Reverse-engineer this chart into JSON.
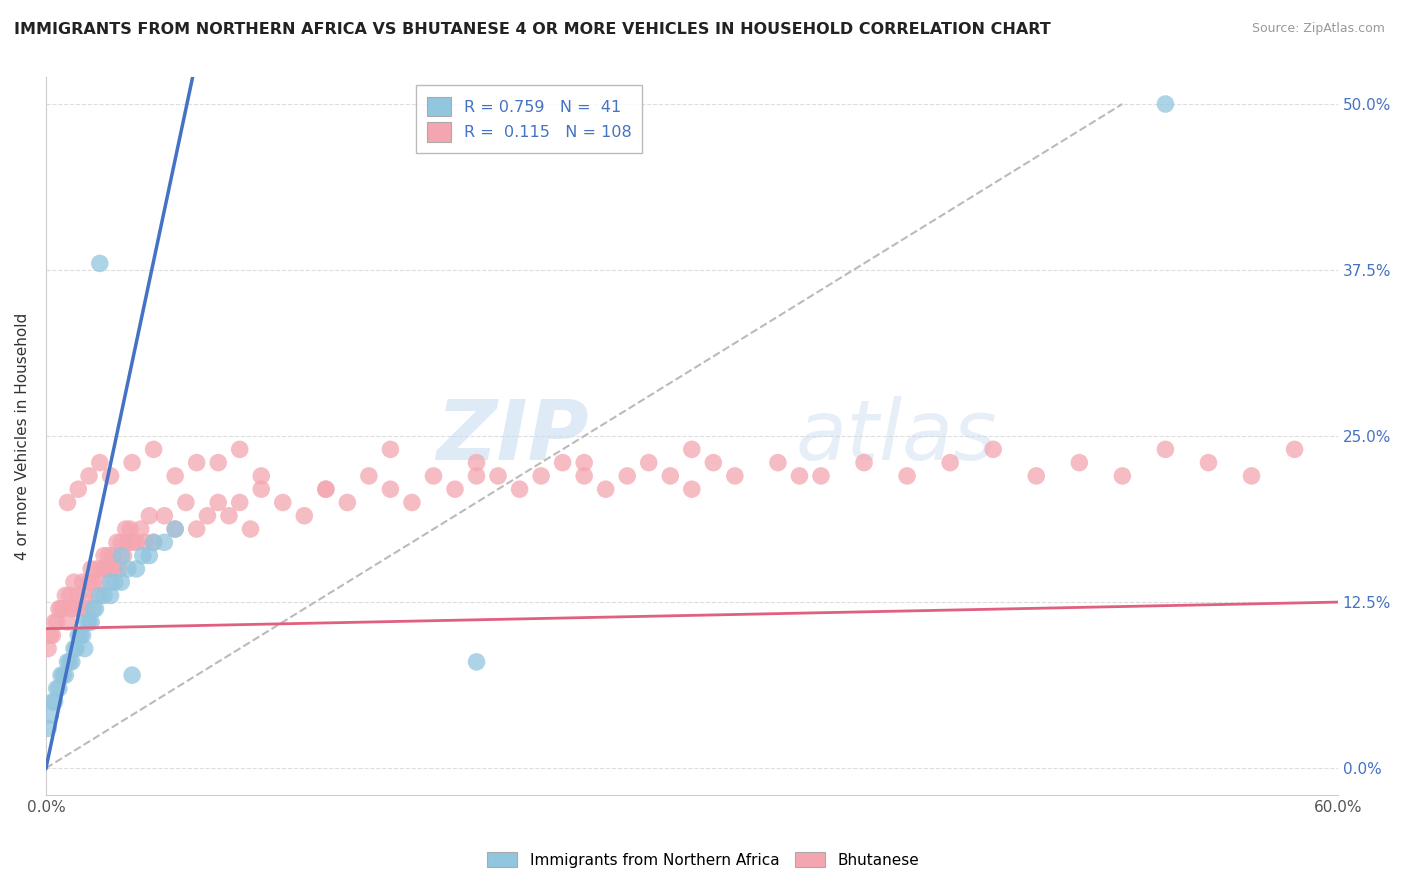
{
  "title": "IMMIGRANTS FROM NORTHERN AFRICA VS BHUTANESE 4 OR MORE VEHICLES IN HOUSEHOLD CORRELATION CHART",
  "source": "Source: ZipAtlas.com",
  "ylabel": "4 or more Vehicles in Household",
  "xlabel": "",
  "legend_labels": [
    "Immigrants from Northern Africa",
    "Bhutanese"
  ],
  "blue_R": 0.759,
  "blue_N": 41,
  "pink_R": 0.115,
  "pink_N": 108,
  "blue_color": "#92C5DE",
  "pink_color": "#F4A6B0",
  "blue_line_color": "#4472C4",
  "pink_line_color": "#E06080",
  "dashed_line_color": "#BBBBBB",
  "watermark_zip": "ZIP",
  "watermark_atlas": "atlas",
  "xlim": [
    0.0,
    0.6
  ],
  "ylim": [
    -0.02,
    0.52
  ],
  "xtick_labels": [
    "0.0%",
    "",
    "",
    "",
    "",
    "",
    "60.0%"
  ],
  "xtick_values": [
    0.0,
    0.1,
    0.2,
    0.3,
    0.4,
    0.5,
    0.6
  ],
  "ytick_labels": [
    "",
    "12.5%",
    "25.0%",
    "37.5%",
    "50.0%"
  ],
  "ytick_values": [
    0.0,
    0.125,
    0.25,
    0.375,
    0.5
  ],
  "right_ytick_labels": [
    "50.0%",
    "37.5%",
    "25.0%",
    "12.5%",
    "0.0%"
  ],
  "blue_scatter_x": [
    0.001,
    0.002,
    0.003,
    0.004,
    0.005,
    0.006,
    0.007,
    0.008,
    0.009,
    0.01,
    0.011,
    0.012,
    0.013,
    0.014,
    0.015,
    0.016,
    0.017,
    0.018,
    0.019,
    0.02,
    0.021,
    0.022,
    0.023,
    0.025,
    0.027,
    0.03,
    0.032,
    0.035,
    0.038,
    0.042,
    0.048,
    0.055,
    0.06,
    0.025,
    0.03,
    0.035,
    0.2,
    0.05,
    0.045,
    0.52,
    0.04
  ],
  "blue_scatter_y": [
    0.03,
    0.04,
    0.05,
    0.05,
    0.06,
    0.06,
    0.07,
    0.07,
    0.07,
    0.08,
    0.08,
    0.08,
    0.09,
    0.09,
    0.1,
    0.1,
    0.1,
    0.09,
    0.11,
    0.11,
    0.11,
    0.12,
    0.12,
    0.13,
    0.13,
    0.13,
    0.14,
    0.14,
    0.15,
    0.15,
    0.16,
    0.17,
    0.18,
    0.38,
    0.14,
    0.16,
    0.08,
    0.17,
    0.16,
    0.5,
    0.07
  ],
  "pink_scatter_x": [
    0.001,
    0.002,
    0.003,
    0.004,
    0.005,
    0.006,
    0.007,
    0.008,
    0.009,
    0.01,
    0.011,
    0.012,
    0.013,
    0.014,
    0.015,
    0.016,
    0.017,
    0.018,
    0.019,
    0.02,
    0.021,
    0.022,
    0.023,
    0.024,
    0.025,
    0.026,
    0.027,
    0.028,
    0.029,
    0.03,
    0.031,
    0.032,
    0.033,
    0.034,
    0.035,
    0.036,
    0.037,
    0.038,
    0.039,
    0.04,
    0.042,
    0.044,
    0.046,
    0.048,
    0.05,
    0.055,
    0.06,
    0.065,
    0.07,
    0.075,
    0.08,
    0.085,
    0.09,
    0.095,
    0.1,
    0.11,
    0.12,
    0.13,
    0.14,
    0.15,
    0.16,
    0.17,
    0.18,
    0.19,
    0.2,
    0.21,
    0.22,
    0.23,
    0.24,
    0.25,
    0.26,
    0.27,
    0.28,
    0.29,
    0.3,
    0.31,
    0.32,
    0.34,
    0.36,
    0.38,
    0.4,
    0.42,
    0.44,
    0.46,
    0.48,
    0.5,
    0.52,
    0.54,
    0.56,
    0.58,
    0.01,
    0.015,
    0.02,
    0.025,
    0.03,
    0.04,
    0.05,
    0.06,
    0.07,
    0.08,
    0.09,
    0.1,
    0.13,
    0.16,
    0.2,
    0.25,
    0.3,
    0.35
  ],
  "pink_scatter_y": [
    0.09,
    0.1,
    0.1,
    0.11,
    0.11,
    0.12,
    0.12,
    0.12,
    0.13,
    0.11,
    0.13,
    0.12,
    0.14,
    0.12,
    0.13,
    0.12,
    0.14,
    0.13,
    0.12,
    0.14,
    0.15,
    0.14,
    0.13,
    0.15,
    0.14,
    0.15,
    0.16,
    0.15,
    0.16,
    0.15,
    0.16,
    0.15,
    0.17,
    0.15,
    0.17,
    0.16,
    0.18,
    0.17,
    0.18,
    0.17,
    0.17,
    0.18,
    0.17,
    0.19,
    0.17,
    0.19,
    0.18,
    0.2,
    0.18,
    0.19,
    0.2,
    0.19,
    0.2,
    0.18,
    0.21,
    0.2,
    0.19,
    0.21,
    0.2,
    0.22,
    0.21,
    0.2,
    0.22,
    0.21,
    0.23,
    0.22,
    0.21,
    0.22,
    0.23,
    0.22,
    0.21,
    0.22,
    0.23,
    0.22,
    0.21,
    0.23,
    0.22,
    0.23,
    0.22,
    0.23,
    0.22,
    0.23,
    0.24,
    0.22,
    0.23,
    0.22,
    0.24,
    0.23,
    0.22,
    0.24,
    0.2,
    0.21,
    0.22,
    0.23,
    0.22,
    0.23,
    0.24,
    0.22,
    0.23,
    0.23,
    0.24,
    0.22,
    0.21,
    0.24,
    0.22,
    0.23,
    0.24,
    0.22
  ]
}
